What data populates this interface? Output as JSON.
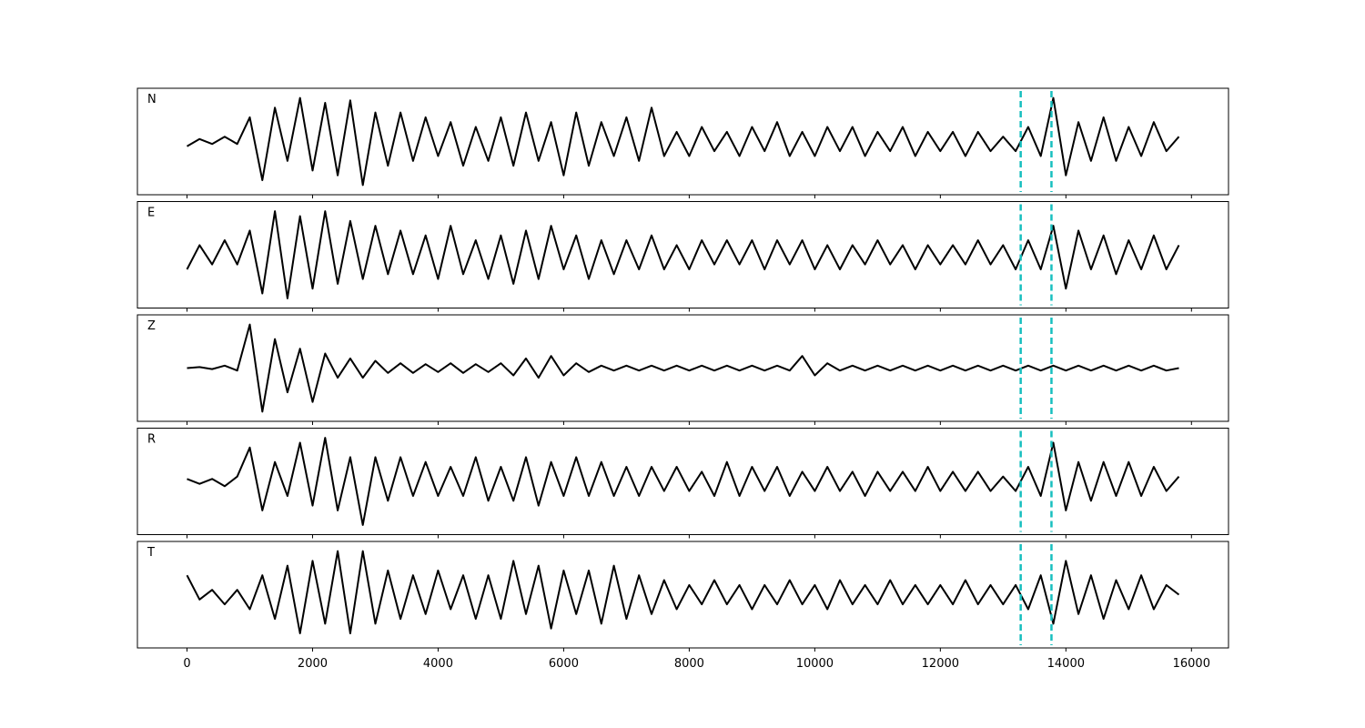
{
  "chart_data": {
    "type": "line",
    "x": [
      0,
      200,
      400,
      600,
      800,
      1000,
      1200,
      1400,
      1600,
      1800,
      2000,
      2200,
      2400,
      2600,
      2800,
      3000,
      3200,
      3400,
      3600,
      3800,
      4000,
      4200,
      4400,
      4600,
      4800,
      5000,
      5200,
      5400,
      5600,
      5800,
      6000,
      6200,
      6400,
      6600,
      6800,
      7000,
      7200,
      7400,
      7600,
      7800,
      8000,
      8200,
      8400,
      8600,
      8800,
      9000,
      9200,
      9400,
      9600,
      9800,
      10000,
      10200,
      10400,
      10600,
      10800,
      11000,
      11200,
      11400,
      11600,
      11800,
      12000,
      12200,
      12400,
      12600,
      12800,
      13000,
      13200,
      13400,
      13600,
      13800,
      14000,
      14200,
      14400,
      14600,
      14800,
      15000,
      15200,
      15400,
      15600,
      15800
    ],
    "xlim": [
      -790,
      16590
    ],
    "xticks": [
      0,
      2000,
      4000,
      6000,
      8000,
      10000,
      12000,
      14000,
      16000
    ],
    "ylim": [
      -1.1,
      1.1
    ],
    "markers": [
      13280,
      13770
    ],
    "marker_color": "#17bfbf",
    "series": [
      {
        "name": "N",
        "color": "#000000",
        "values": [
          -0.1,
          0.05,
          -0.05,
          0.1,
          -0.05,
          0.5,
          -0.8,
          0.7,
          -0.4,
          0.9,
          -0.6,
          0.8,
          -0.7,
          0.85,
          -0.9,
          0.6,
          -0.5,
          0.6,
          -0.4,
          0.5,
          -0.3,
          0.4,
          -0.5,
          0.3,
          -0.4,
          0.5,
          -0.5,
          0.6,
          -0.4,
          0.4,
          -0.7,
          0.6,
          -0.5,
          0.4,
          -0.3,
          0.5,
          -0.4,
          0.7,
          -0.3,
          0.2,
          -0.3,
          0.3,
          -0.2,
          0.2,
          -0.3,
          0.3,
          -0.2,
          0.4,
          -0.3,
          0.2,
          -0.3,
          0.3,
          -0.2,
          0.3,
          -0.3,
          0.2,
          -0.2,
          0.3,
          -0.3,
          0.2,
          -0.2,
          0.2,
          -0.3,
          0.2,
          -0.2,
          0.1,
          -0.2,
          0.3,
          -0.3,
          0.9,
          -0.7,
          0.4,
          -0.4,
          0.5,
          -0.4,
          0.3,
          -0.3,
          0.4,
          -0.2,
          0.1
        ]
      },
      {
        "name": "E",
        "color": "#000000",
        "values": [
          -0.3,
          0.2,
          -0.2,
          0.3,
          -0.2,
          0.5,
          -0.8,
          0.9,
          -0.9,
          0.8,
          -0.7,
          0.9,
          -0.6,
          0.7,
          -0.5,
          0.6,
          -0.4,
          0.5,
          -0.4,
          0.4,
          -0.5,
          0.6,
          -0.4,
          0.3,
          -0.5,
          0.4,
          -0.6,
          0.5,
          -0.5,
          0.6,
          -0.3,
          0.4,
          -0.5,
          0.3,
          -0.4,
          0.3,
          -0.3,
          0.4,
          -0.3,
          0.2,
          -0.3,
          0.3,
          -0.2,
          0.3,
          -0.2,
          0.3,
          -0.3,
          0.3,
          -0.2,
          0.3,
          -0.3,
          0.2,
          -0.3,
          0.2,
          -0.2,
          0.3,
          -0.2,
          0.2,
          -0.3,
          0.2,
          -0.2,
          0.2,
          -0.2,
          0.3,
          -0.2,
          0.2,
          -0.3,
          0.3,
          -0.3,
          0.6,
          -0.7,
          0.5,
          -0.3,
          0.4,
          -0.4,
          0.3,
          -0.3,
          0.4,
          -0.3,
          0.2
        ]
      },
      {
        "name": "Z",
        "color": "#000000",
        "values": [
          0,
          0.02,
          -0.02,
          0.05,
          -0.05,
          0.9,
          -0.9,
          0.6,
          -0.5,
          0.4,
          -0.7,
          0.3,
          -0.2,
          0.2,
          -0.2,
          0.15,
          -0.1,
          0.1,
          -0.1,
          0.08,
          -0.08,
          0.1,
          -0.1,
          0.08,
          -0.08,
          0.1,
          -0.15,
          0.2,
          -0.2,
          0.25,
          -0.15,
          0.1,
          -0.08,
          0.05,
          -0.05,
          0.05,
          -0.05,
          0.05,
          -0.05,
          0.05,
          -0.05,
          0.05,
          -0.05,
          0.05,
          -0.05,
          0.05,
          -0.05,
          0.05,
          -0.05,
          0.25,
          -0.15,
          0.1,
          -0.05,
          0.05,
          -0.05,
          0.05,
          -0.05,
          0.05,
          -0.05,
          0.05,
          -0.05,
          0.05,
          -0.05,
          0.05,
          -0.05,
          0.05,
          -0.05,
          0.05,
          -0.05,
          0.05,
          -0.05,
          0.05,
          -0.05,
          0.05,
          -0.05,
          0.05,
          -0.05,
          0.05,
          -0.05,
          0
        ]
      },
      {
        "name": "R",
        "color": "#000000",
        "values": [
          0.05,
          -0.05,
          0.05,
          -0.1,
          0.1,
          0.7,
          -0.6,
          0.4,
          -0.3,
          0.8,
          -0.5,
          0.9,
          -0.6,
          0.5,
          -0.9,
          0.5,
          -0.4,
          0.5,
          -0.3,
          0.4,
          -0.3,
          0.3,
          -0.3,
          0.5,
          -0.4,
          0.3,
          -0.4,
          0.5,
          -0.5,
          0.4,
          -0.3,
          0.5,
          -0.3,
          0.4,
          -0.3,
          0.3,
          -0.3,
          0.3,
          -0.2,
          0.3,
          -0.2,
          0.2,
          -0.3,
          0.4,
          -0.3,
          0.3,
          -0.2,
          0.3,
          -0.3,
          0.2,
          -0.2,
          0.3,
          -0.2,
          0.2,
          -0.3,
          0.2,
          -0.2,
          0.2,
          -0.2,
          0.3,
          -0.2,
          0.2,
          -0.2,
          0.2,
          -0.2,
          0.1,
          -0.2,
          0.3,
          -0.3,
          0.8,
          -0.6,
          0.4,
          -0.4,
          0.4,
          -0.3,
          0.4,
          -0.3,
          0.3,
          -0.2,
          0.1
        ]
      },
      {
        "name": "T",
        "color": "#000000",
        "values": [
          0.4,
          -0.1,
          0.1,
          -0.2,
          0.1,
          -0.3,
          0.4,
          -0.5,
          0.6,
          -0.8,
          0.7,
          -0.6,
          0.9,
          -0.8,
          0.9,
          -0.6,
          0.5,
          -0.5,
          0.4,
          -0.4,
          0.5,
          -0.3,
          0.4,
          -0.5,
          0.4,
          -0.5,
          0.7,
          -0.4,
          0.6,
          -0.7,
          0.5,
          -0.4,
          0.5,
          -0.6,
          0.6,
          -0.5,
          0.4,
          -0.4,
          0.3,
          -0.3,
          0.2,
          -0.2,
          0.3,
          -0.2,
          0.2,
          -0.3,
          0.2,
          -0.2,
          0.3,
          -0.2,
          0.2,
          -0.3,
          0.3,
          -0.2,
          0.2,
          -0.2,
          0.3,
          -0.2,
          0.2,
          -0.2,
          0.2,
          -0.2,
          0.3,
          -0.2,
          0.2,
          -0.2,
          0.2,
          -0.3,
          0.4,
          -0.6,
          0.7,
          -0.4,
          0.4,
          -0.5,
          0.3,
          -0.3,
          0.4,
          -0.3,
          0.2,
          0
        ]
      }
    ]
  }
}
